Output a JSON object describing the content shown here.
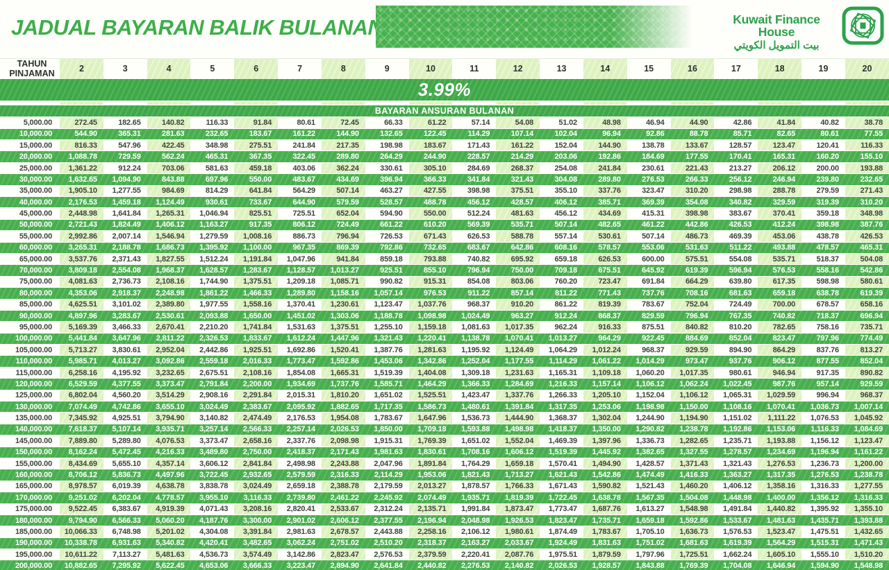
{
  "title": "JADUAL BAYARAN BALIK BULANAN",
  "logo": {
    "name_en": "Kuwait Finance House",
    "name_ar": "بيت التمويل الكويتي"
  },
  "colors": {
    "brand": "#3dae49",
    "row_green": "#47af4d",
    "band_green": "#3fa848",
    "pale_green": "#ddf2bf",
    "ink": "#3f443d",
    "head_ink": "#2c312c",
    "paper": "#fefefa"
  },
  "table": {
    "corner_label": "TAHUN\nPINJAMAN",
    "years": [
      "2",
      "3",
      "4",
      "5",
      "6",
      "7",
      "8",
      "9",
      "10",
      "11",
      "12",
      "13",
      "14",
      "15",
      "16",
      "17",
      "18",
      "19",
      "20"
    ],
    "rate": "3.99%",
    "subtitle": "BAYARAN ANSURAN BULANAN",
    "rows": [
      {
        "amount": "5,000.00",
        "values": [
          "272.45",
          "182.65",
          "140.82",
          "116.33",
          "91.84",
          "80.61",
          "72.45",
          "66.33",
          "61.22",
          "57.14",
          "54.08",
          "51.02",
          "48.98",
          "46.94",
          "44.90",
          "42.86",
          "41.84",
          "40.82",
          "38.78"
        ]
      },
      {
        "amount": "10,000.00",
        "values": [
          "544.90",
          "365.31",
          "281.63",
          "232.65",
          "183.67",
          "161.22",
          "144.90",
          "132.65",
          "122.45",
          "114.29",
          "107.14",
          "102.04",
          "96.94",
          "92.86",
          "88.78",
          "85.71",
          "82.65",
          "80.61",
          "77.55"
        ]
      },
      {
        "amount": "15,000.00",
        "values": [
          "816.33",
          "547.96",
          "422.45",
          "348.98",
          "275.51",
          "241.84",
          "217.35",
          "198.98",
          "183.67",
          "171.43",
          "161.22",
          "152.04",
          "144.90",
          "138.78",
          "133.67",
          "128.57",
          "123.47",
          "120.41",
          "116.33"
        ]
      },
      {
        "amount": "20,000.00",
        "values": [
          "1,088.78",
          "729.59",
          "562.24",
          "465.31",
          "367.35",
          "322.45",
          "289.80",
          "264.29",
          "244.90",
          "228.57",
          "214.29",
          "203.06",
          "192.86",
          "184.69",
          "177.55",
          "170.41",
          "165.31",
          "160.20",
          "155.10"
        ]
      },
      {
        "amount": "25,000.00",
        "values": [
          "1,361.22",
          "912.24",
          "703.06",
          "581.63",
          "459.18",
          "403.06",
          "362.24",
          "330.61",
          "305.10",
          "284.69",
          "268.37",
          "254.08",
          "241.84",
          "230.61",
          "221.43",
          "213.27",
          "206.12",
          "200.00",
          "193.88"
        ]
      },
      {
        "amount": "30,000.00",
        "values": [
          "1,632.65",
          "1,094.90",
          "843.88",
          "697.96",
          "550.00",
          "483.67",
          "434.69",
          "396.94",
          "366.33",
          "341.84",
          "321.43",
          "304.08",
          "289.80",
          "276.53",
          "266.33",
          "256.12",
          "246.94",
          "239.80",
          "232.65"
        ]
      },
      {
        "amount": "35,000.00",
        "values": [
          "1,905.10",
          "1,277.55",
          "984.69",
          "814.29",
          "641.84",
          "564.29",
          "507.14",
          "463.27",
          "427.55",
          "398.98",
          "375.51",
          "355.10",
          "337.76",
          "323.47",
          "310.20",
          "298.98",
          "288.78",
          "279.59",
          "271.43"
        ]
      },
      {
        "amount": "40,000.00",
        "values": [
          "2,176.53",
          "1,459.18",
          "1,124.49",
          "930.61",
          "733.67",
          "644.90",
          "579.59",
          "528.57",
          "488.78",
          "456.12",
          "428.57",
          "406.12",
          "385.71",
          "369.39",
          "354.08",
          "340.82",
          "329.59",
          "319.39",
          "310.20"
        ]
      },
      {
        "amount": "45,000.00",
        "values": [
          "2,448.98",
          "1,641.84",
          "1,265.31",
          "1,046.94",
          "825.51",
          "725.51",
          "652.04",
          "594.90",
          "550.00",
          "512.24",
          "481.63",
          "456.12",
          "434.69",
          "415.31",
          "398.98",
          "383.67",
          "370.41",
          "359.18",
          "348.98"
        ]
      },
      {
        "amount": "50,000.00",
        "values": [
          "2,721.43",
          "1,824.49",
          "1,406.12",
          "1,163.27",
          "917.35",
          "806.12",
          "724.49",
          "661.22",
          "610.20",
          "569.39",
          "535.71",
          "507.14",
          "482.65",
          "461.22",
          "442.86",
          "426.53",
          "412.24",
          "398.98",
          "387.76"
        ]
      },
      {
        "amount": "55,000.00",
        "values": [
          "2,992.86",
          "2,007.14",
          "1,546.94",
          "1,279.59",
          "1,008.16",
          "886.73",
          "796.94",
          "726.53",
          "671.43",
          "626.53",
          "588.78",
          "557.14",
          "530.61",
          "507.14",
          "486.73",
          "469.39",
          "453.06",
          "438.78",
          "426.53"
        ]
      },
      {
        "amount": "60,000.00",
        "values": [
          "3,265.31",
          "2,188.78",
          "1,686.73",
          "1,395.92",
          "1,100.00",
          "967.35",
          "869.39",
          "792.86",
          "732.65",
          "683.67",
          "642.86",
          "608.16",
          "578.57",
          "553.06",
          "531.63",
          "511.22",
          "493.88",
          "478.57",
          "465.31"
        ]
      },
      {
        "amount": "65,000.00",
        "values": [
          "3,537.76",
          "2,371.43",
          "1,827.55",
          "1,512.24",
          "1,191.84",
          "1,047.96",
          "941.84",
          "859.18",
          "793.88",
          "740.82",
          "695.92",
          "659.18",
          "626.53",
          "600.00",
          "575.51",
          "554.08",
          "535.71",
          "518.37",
          "504.08"
        ]
      },
      {
        "amount": "70,000.00",
        "values": [
          "3,809.18",
          "2,554.08",
          "1,968.37",
          "1,628.57",
          "1,283.67",
          "1,128.57",
          "1,013.27",
          "925.51",
          "855.10",
          "796.94",
          "750.00",
          "709.18",
          "675.51",
          "645.92",
          "619.39",
          "596.94",
          "576.53",
          "558.16",
          "542.86"
        ]
      },
      {
        "amount": "75,000.00",
        "values": [
          "4,081.63",
          "2,736.73",
          "2,108.16",
          "1,744.90",
          "1,375.51",
          "1,209.18",
          "1,085.71",
          "990.82",
          "915.31",
          "854.08",
          "803.06",
          "760.20",
          "723.47",
          "691.84",
          "664.29",
          "639.80",
          "617.35",
          "598.98",
          "580.61"
        ]
      },
      {
        "amount": "80,000.00",
        "values": [
          "4,353.06",
          "2,918.37",
          "2,248.98",
          "1,861.22",
          "1,466.33",
          "1,289.80",
          "1,158.16",
          "1,057.14",
          "976.53",
          "911.22",
          "857.14",
          "811.22",
          "771.43",
          "737.76",
          "708.16",
          "681.63",
          "659.18",
          "638.78",
          "619.39"
        ]
      },
      {
        "amount": "85,000.00",
        "values": [
          "4,625.51",
          "3,101.02",
          "2,389.80",
          "1,977.55",
          "1,558.16",
          "1,370.41",
          "1,230.61",
          "1,123.47",
          "1,037.76",
          "968.37",
          "910.20",
          "861.22",
          "819.39",
          "783.67",
          "752.04",
          "724.49",
          "700.00",
          "678.57",
          "658.16"
        ]
      },
      {
        "amount": "90,000.00",
        "values": [
          "4,897.96",
          "3,283.67",
          "2,530.61",
          "2,093.88",
          "1,650.00",
          "1,451.02",
          "1,303.06",
          "1,188.78",
          "1,098.98",
          "1,024.49",
          "963.27",
          "912.24",
          "868.37",
          "829.59",
          "796.94",
          "767.35",
          "740.82",
          "718.37",
          "696.94"
        ]
      },
      {
        "amount": "95,000.00",
        "values": [
          "5,169.39",
          "3,466.33",
          "2,670.41",
          "2,210.20",
          "1,741.84",
          "1,531.63",
          "1,375.51",
          "1,255.10",
          "1,159.18",
          "1,081.63",
          "1,017.35",
          "962.24",
          "916.33",
          "875.51",
          "840.82",
          "810.20",
          "782.65",
          "758.16",
          "735.71"
        ]
      },
      {
        "amount": "100,000.00",
        "values": [
          "5,441.84",
          "3,647.96",
          "2,811.22",
          "2,326.53",
          "1,833.67",
          "1,612.24",
          "1,447.96",
          "1,321.43",
          "1,220.41",
          "1,138.78",
          "1,070.41",
          "1,013.27",
          "964.29",
          "922.45",
          "884.69",
          "852.04",
          "823.47",
          "797.96",
          "774.49"
        ]
      },
      {
        "amount": "105,000.00",
        "values": [
          "5,713.27",
          "3,830.61",
          "2,952.04",
          "2,442.86",
          "1,925.51",
          "1,692.86",
          "1,520.41",
          "1,387.76",
          "1,281.63",
          "1,195.92",
          "1,124.49",
          "1,064.29",
          "1,012.24",
          "968.37",
          "929.59",
          "894.90",
          "864.29",
          "837.76",
          "813.27"
        ]
      },
      {
        "amount": "110,000.00",
        "values": [
          "5,985.71",
          "4,013.27",
          "3,092.86",
          "2,559.18",
          "2,016.33",
          "1,773.47",
          "1,592.86",
          "1,453.06",
          "1,342.86",
          "1,252.04",
          "1,177.55",
          "1,114.29",
          "1,061.22",
          "1,014.29",
          "973.47",
          "937.76",
          "906.12",
          "877.55",
          "852.04"
        ]
      },
      {
        "amount": "115,000.00",
        "values": [
          "6,258.16",
          "4,195.92",
          "3,232.65",
          "2,675.51",
          "2,108.16",
          "1,854.08",
          "1,665.31",
          "1,519.39",
          "1,404.08",
          "1,309.18",
          "1,231.63",
          "1,165.31",
          "1,109.18",
          "1,060.20",
          "1,017.35",
          "980.61",
          "946.94",
          "917.35",
          "890.82"
        ]
      },
      {
        "amount": "120,000.00",
        "values": [
          "6,529.59",
          "4,377.55",
          "3,373.47",
          "2,791.84",
          "2,200.00",
          "1,934.69",
          "1,737.76",
          "1,585.71",
          "1,464.29",
          "1,366.33",
          "1,284.69",
          "1,216.33",
          "1,157.14",
          "1,106.12",
          "1,062.24",
          "1,022.45",
          "987.76",
          "957.14",
          "929.59"
        ]
      },
      {
        "amount": "125,000.00",
        "values": [
          "6,802.04",
          "4,560.20",
          "3,514.29",
          "2,908.16",
          "2,291.84",
          "2,015.31",
          "1,810.20",
          "1,651.02",
          "1,525.51",
          "1,423.47",
          "1,337.76",
          "1,266.33",
          "1,205.10",
          "1,152.04",
          "1,106.12",
          "1,065.31",
          "1,029.59",
          "996.94",
          "968.37"
        ]
      },
      {
        "amount": "130,000.00",
        "values": [
          "7,074.49",
          "4,742.86",
          "3,655.10",
          "3,024.49",
          "2,383.67",
          "2,095.92",
          "1,882.65",
          "1,717.35",
          "1,586.73",
          "1,480.61",
          "1,391.84",
          "1,317.35",
          "1,253.06",
          "1,198.98",
          "1,150.00",
          "1,108.16",
          "1,070.41",
          "1,036.73",
          "1,007.14"
        ]
      },
      {
        "amount": "135,000.00",
        "values": [
          "7,345.92",
          "4,925.51",
          "3,794.90",
          "3,140.82",
          "2,474.49",
          "2,176.53",
          "1,954.08",
          "1,783.67",
          "1,647.96",
          "1,536.73",
          "1,444.90",
          "1,368.37",
          "1,302.04",
          "1,244.90",
          "1,194.90",
          "1,151.02",
          "1,111.22",
          "1,076.53",
          "1,045.92"
        ]
      },
      {
        "amount": "140,000.00",
        "values": [
          "7,618.37",
          "5,107.14",
          "3,935.71",
          "3,257.14",
          "2,566.33",
          "2,257.14",
          "2,026.53",
          "1,850.00",
          "1,709.18",
          "1,593.88",
          "1,498.98",
          "1,418.37",
          "1,350.00",
          "1,290.82",
          "1,238.78",
          "1,192.86",
          "1,153.06",
          "1,116.33",
          "1,084.69"
        ]
      },
      {
        "amount": "145,000.00",
        "values": [
          "7,889.80",
          "5,289.80",
          "4,076.53",
          "3,373.47",
          "2,658.16",
          "2,337.76",
          "2,098.98",
          "1,915.31",
          "1,769.39",
          "1,651.02",
          "1,552.04",
          "1,469.39",
          "1,397.96",
          "1,336.73",
          "1,282.65",
          "1,235.71",
          "1,193.88",
          "1,156.12",
          "1,123.47"
        ]
      },
      {
        "amount": "150,000.00",
        "values": [
          "8,162.24",
          "5,472.45",
          "4,216.33",
          "3,489.80",
          "2,750.00",
          "2,418.37",
          "2,171.43",
          "1,981.63",
          "1,830.61",
          "1,708.16",
          "1,606.12",
          "1,519.39",
          "1,445.92",
          "1,382.65",
          "1,327.55",
          "1,278.57",
          "1,234.69",
          "1,196.94",
          "1,161.22"
        ]
      },
      {
        "amount": "155,000.00",
        "values": [
          "8,434.69",
          "5,655.10",
          "4,357.14",
          "3,606.12",
          "2,841.84",
          "2,498.98",
          "2,243.88",
          "2,047.96",
          "1,891.84",
          "1,764.29",
          "1,659.18",
          "1,570.41",
          "1,494.90",
          "1,428.57",
          "1,371.43",
          "1,321.43",
          "1,276.53",
          "1,236.73",
          "1,200.00"
        ]
      },
      {
        "amount": "160,000.00",
        "values": [
          "8,706.12",
          "5,836.73",
          "4,497.96",
          "3,722.45",
          "2,932.65",
          "2,579.59",
          "2,316.33",
          "2,114.29",
          "1,953.06",
          "1,821.43",
          "1,713.27",
          "1,621.43",
          "1,542.86",
          "1,474.49",
          "1,416.33",
          "1,363.27",
          "1,317.35",
          "1,276.53",
          "1,238.78"
        ]
      },
      {
        "amount": "165,000.00",
        "values": [
          "8,978.57",
          "6,019.39",
          "4,638.78",
          "3,838.78",
          "3,024.49",
          "2,659.18",
          "2,388.78",
          "2,179.59",
          "2,013.27",
          "1,878.57",
          "1,766.33",
          "1,671.43",
          "1,590.82",
          "1,521.43",
          "1,460.20",
          "1,406.12",
          "1,358.16",
          "1,316.33",
          "1,277.55"
        ]
      },
      {
        "amount": "170,000.00",
        "values": [
          "9,251.02",
          "6,202.04",
          "4,778.57",
          "3,955.10",
          "3,116.33",
          "2,739.80",
          "2,461.22",
          "2,245.92",
          "2,074.49",
          "1,935.71",
          "1,819.39",
          "1,722.45",
          "1,638.78",
          "1,567.35",
          "1,504.08",
          "1,448.98",
          "1,400.00",
          "1,356.12",
          "1,316.33"
        ]
      },
      {
        "amount": "175,000.00",
        "values": [
          "9,522.45",
          "6,383.67",
          "4,919.39",
          "4,071.43",
          "3,208.16",
          "2,820.41",
          "2,533.67",
          "2,312.24",
          "2,135.71",
          "1,991.84",
          "1,873.47",
          "1,773.47",
          "1,687.76",
          "1,613.27",
          "1,548.98",
          "1,491.84",
          "1,440.82",
          "1,395.92",
          "1,355.10"
        ]
      },
      {
        "amount": "180,000.00",
        "values": [
          "9,794.90",
          "6,566.33",
          "5,060.20",
          "4,187.76",
          "3,300.00",
          "2,901.02",
          "2,606.12",
          "2,377.55",
          "2,196.94",
          "2,048.98",
          "1,926.53",
          "1,823.47",
          "1,735.71",
          "1,659.18",
          "1,592.86",
          "1,533.67",
          "1,481.63",
          "1,435.71",
          "1,393.88"
        ]
      },
      {
        "amount": "185,000.00",
        "values": [
          "10,066.33",
          "6,748.98",
          "5,201.02",
          "4,304.08",
          "3,391.84",
          "2,981.63",
          "2,678.57",
          "2,443.88",
          "2,258.16",
          "2,106.12",
          "1,980.61",
          "1,874.49",
          "1,783.67",
          "1,705.10",
          "1,636.73",
          "1,576.53",
          "1,523.47",
          "1,475.51",
          "1,432.65"
        ]
      },
      {
        "amount": "190,000.00",
        "values": [
          "10,338.78",
          "6,931.63",
          "5,340.82",
          "4,420.41",
          "3,482.65",
          "3,062.24",
          "2,751.02",
          "2,510.20",
          "2,318.37",
          "2,163.27",
          "2,033.67",
          "1,924.49",
          "1,831.63",
          "1,751.02",
          "1,681.63",
          "1,619.39",
          "1,564.29",
          "1,515.31",
          "1,471.43"
        ]
      },
      {
        "amount": "195,000.00",
        "values": [
          "10,611.22",
          "7,113.27",
          "5,481.63",
          "4,536.73",
          "3,574.49",
          "3,142.86",
          "2,823.47",
          "2,576.53",
          "2,379.59",
          "2,220.41",
          "2,087.76",
          "1,975.51",
          "1,879.59",
          "1,797.96",
          "1,725.51",
          "1,662.24",
          "1,605.10",
          "1,555.10",
          "1,510.20"
        ]
      },
      {
        "amount": "200,000.00",
        "values": [
          "10,882.65",
          "7,295.92",
          "5,622.45",
          "4,653.06",
          "3,666.33",
          "3,223.47",
          "2,894.90",
          "2,641.84",
          "2,440.82",
          "2,276.53",
          "2,140.82",
          "2,026.53",
          "1,928.57",
          "1,843.88",
          "1,769.39",
          "1,704.08",
          "1,646.94",
          "1,594.90",
          "1,548.98"
        ]
      }
    ]
  }
}
